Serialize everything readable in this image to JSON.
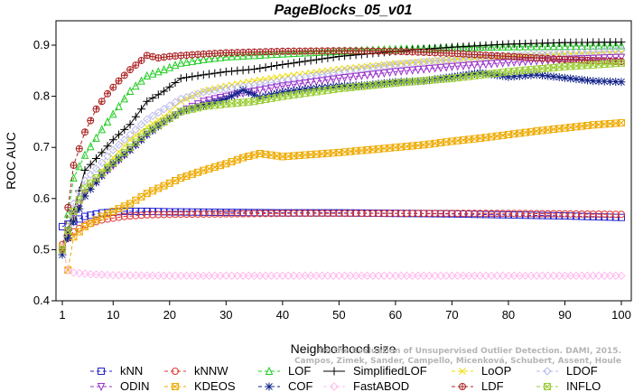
{
  "chart_data": {
    "type": "line",
    "title": "PageBlocks_05_v01",
    "xlabel": "Neighborhood size",
    "ylabel": "ROC AUC",
    "xlim": [
      1,
      100
    ],
    "ylim": [
      0.4,
      0.92
    ],
    "xticks": [
      1,
      10,
      20,
      30,
      40,
      50,
      60,
      70,
      80,
      90,
      100
    ],
    "yticks": [
      0.4,
      0.5,
      0.6,
      0.7,
      0.8,
      0.9
    ],
    "grid": false,
    "legend_position": "bottom",
    "watermark": [
      "Campos, Zimek, Sander, Campello, Micenková, Schubert, Assent, Houle",
      "On the Evaluation of Unsupervised Outlier Detection. DAMI, 2015."
    ],
    "series": [
      {
        "name": "kNN",
        "color": "#2222cc",
        "marker": "square",
        "dash": "4,3",
        "points": [
          [
            1,
            0.545
          ],
          [
            3,
            0.555
          ],
          [
            5,
            0.565
          ],
          [
            8,
            0.572
          ],
          [
            12,
            0.575
          ],
          [
            16,
            0.575
          ],
          [
            20,
            0.574
          ],
          [
            30,
            0.573
          ],
          [
            40,
            0.572
          ],
          [
            50,
            0.572
          ],
          [
            60,
            0.571
          ],
          [
            70,
            0.57
          ],
          [
            80,
            0.568
          ],
          [
            90,
            0.566
          ],
          [
            100,
            0.563
          ]
        ]
      },
      {
        "name": "kNNW",
        "color": "#dd3333",
        "marker": "circle",
        "dash": "4,3",
        "points": [
          [
            1,
            0.51
          ],
          [
            3,
            0.535
          ],
          [
            5,
            0.548
          ],
          [
            8,
            0.558
          ],
          [
            12,
            0.565
          ],
          [
            16,
            0.568
          ],
          [
            20,
            0.569
          ],
          [
            30,
            0.57
          ],
          [
            40,
            0.571
          ],
          [
            50,
            0.571
          ],
          [
            60,
            0.571
          ],
          [
            70,
            0.571
          ],
          [
            80,
            0.571
          ],
          [
            90,
            0.57
          ],
          [
            100,
            0.569
          ]
        ]
      },
      {
        "name": "LOF",
        "color": "#22cc22",
        "marker": "triangle",
        "dash": "4,3",
        "points": [
          [
            1,
            0.5
          ],
          [
            3,
            0.64
          ],
          [
            5,
            0.685
          ],
          [
            8,
            0.735
          ],
          [
            10,
            0.765
          ],
          [
            13,
            0.81
          ],
          [
            16,
            0.84
          ],
          [
            19,
            0.852
          ],
          [
            22,
            0.865
          ],
          [
            26,
            0.872
          ],
          [
            30,
            0.877
          ],
          [
            35,
            0.88
          ],
          [
            40,
            0.883
          ],
          [
            50,
            0.888
          ],
          [
            60,
            0.892
          ],
          [
            70,
            0.895
          ],
          [
            80,
            0.897
          ],
          [
            90,
            0.898
          ],
          [
            100,
            0.899
          ]
        ]
      },
      {
        "name": "SimplifiedLOF",
        "color": "#000000",
        "marker": "plus",
        "dash": "",
        "points": [
          [
            1,
            0.5
          ],
          [
            3,
            0.575
          ],
          [
            5,
            0.655
          ],
          [
            8,
            0.69
          ],
          [
            10,
            0.715
          ],
          [
            13,
            0.745
          ],
          [
            16,
            0.79
          ],
          [
            19,
            0.81
          ],
          [
            22,
            0.835
          ],
          [
            26,
            0.842
          ],
          [
            30,
            0.848
          ],
          [
            35,
            0.853
          ],
          [
            40,
            0.862
          ],
          [
            50,
            0.878
          ],
          [
            60,
            0.888
          ],
          [
            70,
            0.896
          ],
          [
            80,
            0.902
          ],
          [
            90,
            0.905
          ],
          [
            100,
            0.906
          ]
        ]
      },
      {
        "name": "LoOP",
        "color": "#eedd00",
        "marker": "x",
        "dash": "4,3",
        "points": [
          [
            1,
            0.5
          ],
          [
            3,
            0.56
          ],
          [
            5,
            0.61
          ],
          [
            8,
            0.655
          ],
          [
            10,
            0.68
          ],
          [
            13,
            0.715
          ],
          [
            16,
            0.74
          ],
          [
            19,
            0.76
          ],
          [
            22,
            0.79
          ],
          [
            26,
            0.81
          ],
          [
            30,
            0.82
          ],
          [
            35,
            0.83
          ],
          [
            40,
            0.838
          ],
          [
            50,
            0.853
          ],
          [
            60,
            0.864
          ],
          [
            70,
            0.872
          ],
          [
            80,
            0.878
          ],
          [
            90,
            0.883
          ],
          [
            100,
            0.886
          ]
        ]
      },
      {
        "name": "LDOF",
        "color": "#bbbbee",
        "marker": "diamond",
        "dash": "4,3",
        "points": [
          [
            1,
            0.5
          ],
          [
            3,
            0.59
          ],
          [
            5,
            0.635
          ],
          [
            8,
            0.67
          ],
          [
            10,
            0.695
          ],
          [
            13,
            0.725
          ],
          [
            16,
            0.755
          ],
          [
            19,
            0.775
          ],
          [
            22,
            0.795
          ],
          [
            26,
            0.808
          ],
          [
            30,
            0.815
          ],
          [
            35,
            0.822
          ],
          [
            40,
            0.83
          ],
          [
            50,
            0.848
          ],
          [
            60,
            0.862
          ],
          [
            70,
            0.872
          ],
          [
            80,
            0.88
          ],
          [
            90,
            0.885
          ],
          [
            100,
            0.89
          ]
        ]
      },
      {
        "name": "ODIN",
        "color": "#9933cc",
        "marker": "invtriangle",
        "dash": "4,3",
        "points": [
          [
            1,
            0.5
          ],
          [
            3,
            0.57
          ],
          [
            5,
            0.61
          ],
          [
            8,
            0.645
          ],
          [
            10,
            0.665
          ],
          [
            13,
            0.695
          ],
          [
            16,
            0.725
          ],
          [
            19,
            0.75
          ],
          [
            22,
            0.77
          ],
          [
            26,
            0.79
          ],
          [
            30,
            0.8
          ],
          [
            35,
            0.81
          ],
          [
            40,
            0.82
          ],
          [
            50,
            0.835
          ],
          [
            60,
            0.848
          ],
          [
            70,
            0.858
          ],
          [
            80,
            0.866
          ],
          [
            90,
            0.872
          ],
          [
            100,
            0.876
          ]
        ]
      },
      {
        "name": "KDEOS",
        "color": "#eeaa00",
        "marker": "squarex",
        "dash": "4,3",
        "points": [
          [
            1,
            0.505
          ],
          [
            2,
            0.46
          ],
          [
            3,
            0.525
          ],
          [
            5,
            0.545
          ],
          [
            8,
            0.565
          ],
          [
            10,
            0.575
          ],
          [
            13,
            0.59
          ],
          [
            16,
            0.61
          ],
          [
            19,
            0.625
          ],
          [
            22,
            0.64
          ],
          [
            26,
            0.655
          ],
          [
            30,
            0.668
          ],
          [
            33,
            0.68
          ],
          [
            36,
            0.688
          ],
          [
            38,
            0.685
          ],
          [
            40,
            0.682
          ],
          [
            45,
            0.686
          ],
          [
            50,
            0.69
          ],
          [
            55,
            0.695
          ],
          [
            60,
            0.7
          ],
          [
            65,
            0.705
          ],
          [
            70,
            0.712
          ],
          [
            75,
            0.718
          ],
          [
            80,
            0.725
          ],
          [
            85,
            0.732
          ],
          [
            90,
            0.738
          ],
          [
            95,
            0.744
          ],
          [
            100,
            0.748
          ]
        ]
      },
      {
        "name": "COF",
        "color": "#112288",
        "marker": "asterisk",
        "dash": "4,3",
        "points": [
          [
            1,
            0.49
          ],
          [
            3,
            0.555
          ],
          [
            5,
            0.605
          ],
          [
            8,
            0.645
          ],
          [
            10,
            0.668
          ],
          [
            13,
            0.695
          ],
          [
            16,
            0.725
          ],
          [
            19,
            0.75
          ],
          [
            22,
            0.77
          ],
          [
            26,
            0.782
          ],
          [
            30,
            0.795
          ],
          [
            33,
            0.812
          ],
          [
            36,
            0.798
          ],
          [
            40,
            0.808
          ],
          [
            45,
            0.815
          ],
          [
            50,
            0.82
          ],
          [
            55,
            0.822
          ],
          [
            60,
            0.828
          ],
          [
            65,
            0.83
          ],
          [
            70,
            0.838
          ],
          [
            75,
            0.846
          ],
          [
            80,
            0.838
          ],
          [
            85,
            0.842
          ],
          [
            90,
            0.836
          ],
          [
            95,
            0.83
          ],
          [
            100,
            0.828
          ]
        ]
      },
      {
        "name": "FastABOD",
        "color": "#ffbbee",
        "marker": "diamond",
        "dash": "4,3",
        "points": [
          [
            1,
            0.505
          ],
          [
            2,
            0.46
          ],
          [
            3,
            0.455
          ],
          [
            6,
            0.452
          ],
          [
            10,
            0.45
          ],
          [
            20,
            0.449
          ],
          [
            30,
            0.449
          ],
          [
            40,
            0.449
          ],
          [
            50,
            0.449
          ],
          [
            60,
            0.449
          ],
          [
            70,
            0.449
          ],
          [
            80,
            0.449
          ],
          [
            90,
            0.449
          ],
          [
            100,
            0.449
          ]
        ]
      },
      {
        "name": "LDF",
        "color": "#aa2222",
        "marker": "circleplus",
        "dash": "4,3",
        "points": [
          [
            1,
            0.5
          ],
          [
            3,
            0.665
          ],
          [
            5,
            0.73
          ],
          [
            7,
            0.775
          ],
          [
            9,
            0.805
          ],
          [
            11,
            0.83
          ],
          [
            13,
            0.852
          ],
          [
            15,
            0.87
          ],
          [
            16,
            0.88
          ],
          [
            18,
            0.875
          ],
          [
            20,
            0.878
          ],
          [
            25,
            0.882
          ],
          [
            30,
            0.885
          ],
          [
            40,
            0.888
          ],
          [
            50,
            0.889
          ],
          [
            60,
            0.888
          ],
          [
            70,
            0.884
          ],
          [
            80,
            0.878
          ],
          [
            90,
            0.872
          ],
          [
            100,
            0.868
          ]
        ]
      },
      {
        "name": "INFLO",
        "color": "#99cc33",
        "marker": "squarex",
        "dash": "4,3",
        "points": [
          [
            1,
            0.5
          ],
          [
            3,
            0.575
          ],
          [
            5,
            0.62
          ],
          [
            8,
            0.65
          ],
          [
            10,
            0.67
          ],
          [
            13,
            0.7
          ],
          [
            16,
            0.73
          ],
          [
            19,
            0.75
          ],
          [
            22,
            0.77
          ],
          [
            26,
            0.78
          ],
          [
            30,
            0.785
          ],
          [
            35,
            0.79
          ],
          [
            40,
            0.8
          ],
          [
            50,
            0.815
          ],
          [
            60,
            0.826
          ],
          [
            70,
            0.835
          ],
          [
            80,
            0.848
          ],
          [
            90,
            0.858
          ],
          [
            100,
            0.865
          ]
        ]
      }
    ]
  }
}
